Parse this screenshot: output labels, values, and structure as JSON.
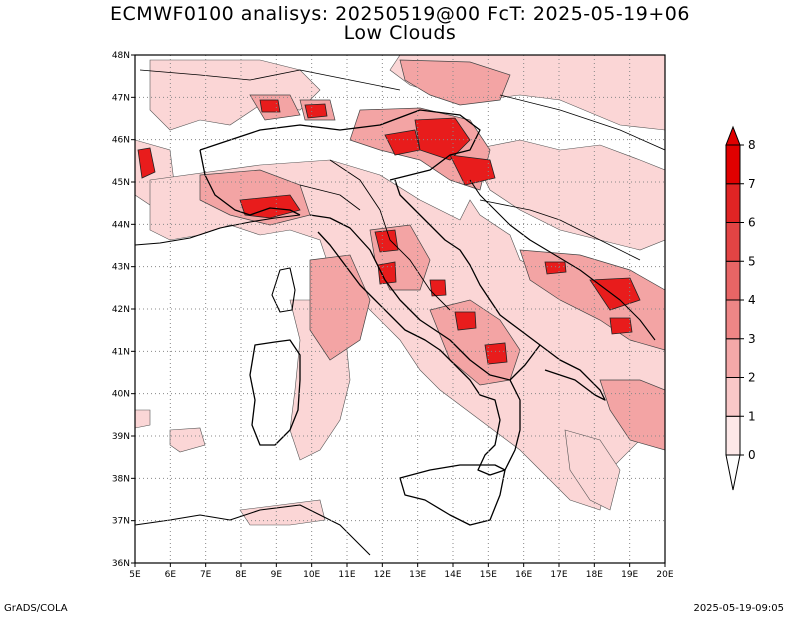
{
  "title_line1": "ECMWF0100 analisys: 20250519@00 FcT: 2025-05-19+06",
  "title_line2": "Low Clouds",
  "footer_left": "GrADS/COLA",
  "footer_right": "2025-05-19-09:05",
  "map": {
    "lon_ticks": [
      "5E",
      "6E",
      "7E",
      "8E",
      "9E",
      "10E",
      "11E",
      "12E",
      "13E",
      "14E",
      "15E",
      "16E",
      "17E",
      "18E",
      "19E",
      "20E"
    ],
    "lat_ticks": [
      "48N",
      "47N",
      "46N",
      "45N",
      "44N",
      "43N",
      "42N",
      "41N",
      "40N",
      "39N",
      "38N",
      "37N",
      "36N"
    ],
    "lon_range": [
      5,
      20
    ],
    "lat_range": [
      36,
      48
    ],
    "gridlines": "dotted"
  },
  "colorbar": {
    "levels": [
      "0",
      "1",
      "2",
      "3",
      "4",
      "5",
      "6",
      "7",
      "8"
    ],
    "colors": [
      "#fde8e8",
      "#f9c8c8",
      "#f4a8a8",
      "#ee8686",
      "#e86565",
      "#e34444",
      "#e02424",
      "#e00000"
    ]
  },
  "colors": {
    "land_border": "#000000",
    "cloud_low": "#fbd6d6",
    "cloud_mid": "#f09a9a",
    "cloud_high": "#e01818"
  }
}
